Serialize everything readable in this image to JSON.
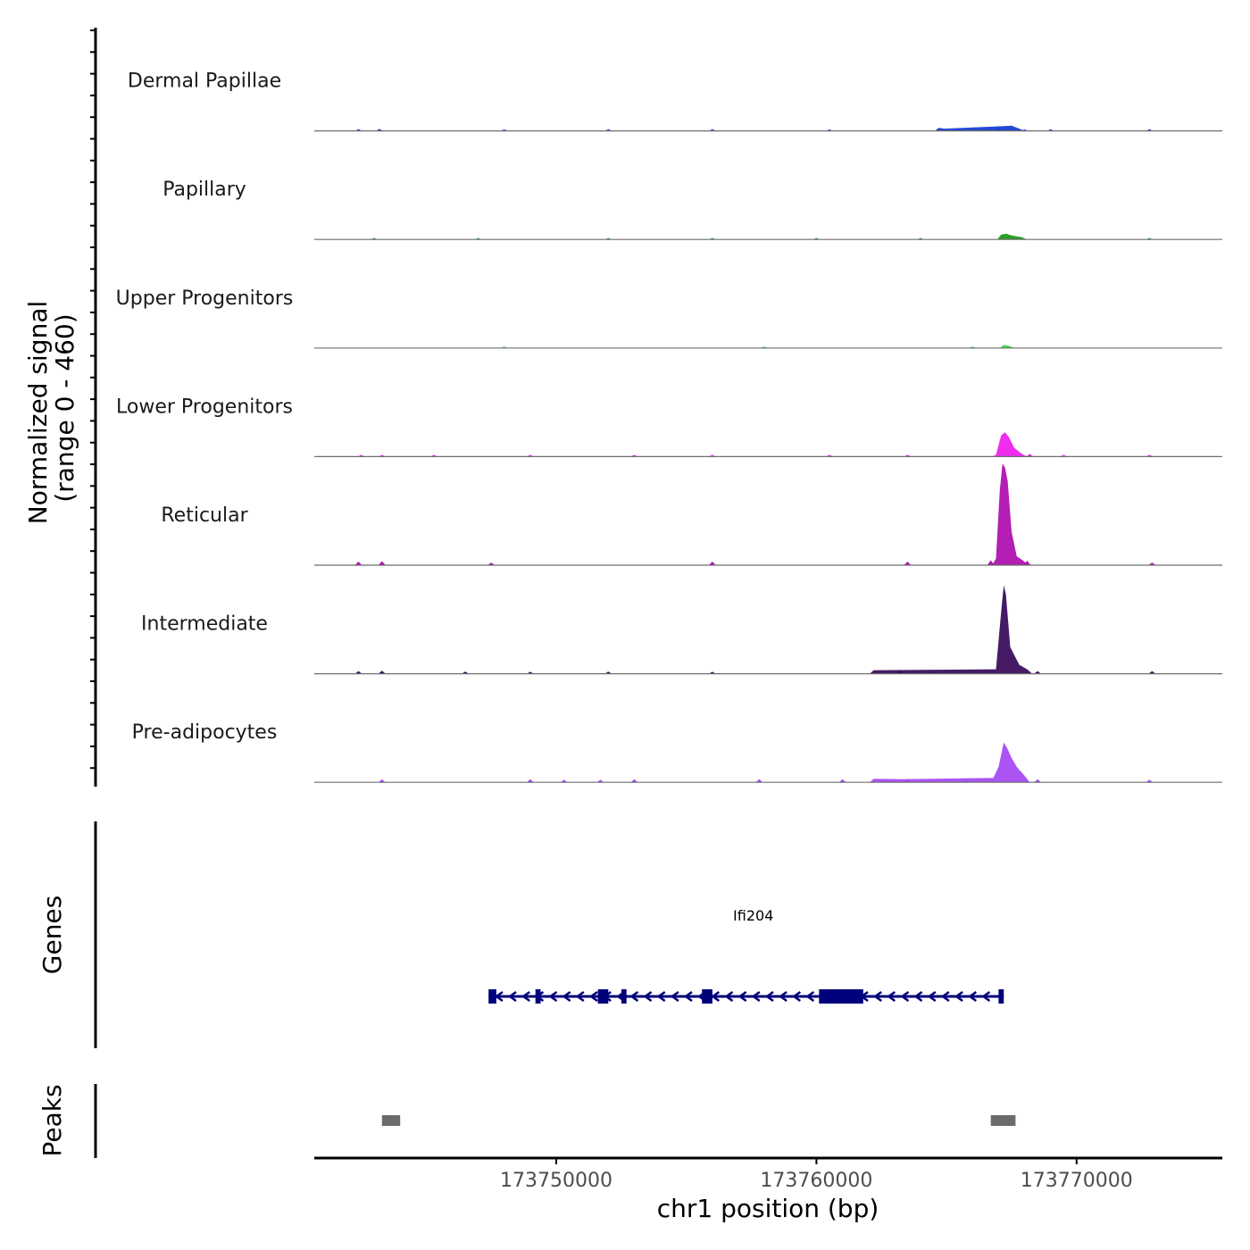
{
  "chart_data": {
    "type": "area",
    "title": "",
    "chromosome": "chr1",
    "xlabel": "chr1 position (bp)",
    "ylabel": "Normalized signal",
    "ylabel_range": "(range 0 - 460)",
    "y_range": [
      0,
      460
    ],
    "xlim": [
      173740700,
      173775600
    ],
    "x_ticks": [
      173750000,
      173760000,
      173770000
    ],
    "x_tick_labels": [
      "173750000",
      "173760000",
      "173770000"
    ],
    "tracks": [
      {
        "name": "Dermal Papillae",
        "color": "#1a3fd1",
        "baseline": [
          [
            173742400,
            2
          ],
          [
            173743200,
            3
          ],
          [
            173748000,
            1
          ],
          [
            173752000,
            2
          ],
          [
            173756000,
            2
          ],
          [
            173760500,
            1
          ],
          [
            173765500,
            3
          ],
          [
            173767000,
            7
          ],
          [
            173768000,
            1
          ],
          [
            173769000,
            2
          ],
          [
            173772800,
            2
          ]
        ],
        "peaks": [
          [
            173764700,
            14
          ],
          [
            173764900,
            10
          ],
          [
            173767300,
            22
          ],
          [
            173767500,
            24
          ],
          [
            173767800,
            10
          ]
        ]
      },
      {
        "name": "Papillary",
        "color": "#1f9a1f",
        "baseline": [
          [
            173743000,
            1
          ],
          [
            173747000,
            1
          ],
          [
            173752000,
            1
          ],
          [
            173756000,
            1
          ],
          [
            173760000,
            1
          ],
          [
            173764000,
            1
          ],
          [
            173772800,
            1
          ]
        ],
        "peaks": [
          [
            173767100,
            22
          ],
          [
            173767300,
            26
          ],
          [
            173767500,
            18
          ],
          [
            173767900,
            10
          ]
        ]
      },
      {
        "name": "Upper Progenitors",
        "color": "#4ed14e",
        "baseline": [
          [
            173748000,
            1
          ],
          [
            173758000,
            1
          ],
          [
            173766000,
            1
          ]
        ],
        "peaks": [
          [
            173767200,
            14
          ],
          [
            173767400,
            10
          ]
        ]
      },
      {
        "name": "Lower Progenitors",
        "color": "#ee22ee",
        "baseline": [
          [
            173742500,
            2
          ],
          [
            173743300,
            2
          ],
          [
            173745300,
            2
          ],
          [
            173749000,
            2
          ],
          [
            173753000,
            2
          ],
          [
            173756000,
            2
          ],
          [
            173760500,
            2
          ],
          [
            173763500,
            2
          ],
          [
            173768200,
            6
          ],
          [
            173769500,
            2
          ],
          [
            173772800,
            2
          ]
        ],
        "peaks": [
          [
            173766900,
            8
          ],
          [
            173767100,
            96
          ],
          [
            173767250,
            110
          ],
          [
            173767400,
            88
          ],
          [
            173767600,
            40
          ],
          [
            173767900,
            12
          ]
        ]
      },
      {
        "name": "Reticular",
        "color": "#b012b0",
        "baseline": [
          [
            173742400,
            10
          ],
          [
            173743300,
            12
          ],
          [
            173747500,
            6
          ],
          [
            173756000,
            10
          ],
          [
            173763500,
            10
          ],
          [
            173766700,
            16
          ],
          [
            173768100,
            14
          ],
          [
            173772900,
            6
          ]
        ],
        "peaks": [
          [
            173766900,
            30
          ],
          [
            173767050,
            340
          ],
          [
            173767150,
            460
          ],
          [
            173767250,
            440
          ],
          [
            173767350,
            380
          ],
          [
            173767500,
            150
          ],
          [
            173767700,
            40
          ],
          [
            173767950,
            20
          ]
        ]
      },
      {
        "name": "Intermediate",
        "color": "#3b0f5e",
        "baseline": [
          [
            173742400,
            6
          ],
          [
            173743300,
            8
          ],
          [
            173746500,
            4
          ],
          [
            173749000,
            3
          ],
          [
            173752000,
            4
          ],
          [
            173756000,
            3
          ],
          [
            173763200,
            10
          ],
          [
            173764500,
            4
          ],
          [
            173768500,
            6
          ],
          [
            173772900,
            6
          ]
        ],
        "peaks": [
          [
            173762200,
            16
          ],
          [
            173766900,
            20
          ],
          [
            173767100,
            280
          ],
          [
            173767200,
            400
          ],
          [
            173767280,
            360
          ],
          [
            173767450,
            120
          ],
          [
            173767800,
            40
          ],
          [
            173768100,
            20
          ]
        ]
      },
      {
        "name": "Pre-adipocytes",
        "color": "#a64bf2",
        "baseline": [
          [
            173743300,
            8
          ],
          [
            173749000,
            8
          ],
          [
            173750300,
            6
          ],
          [
            173751700,
            6
          ],
          [
            173753000,
            8
          ],
          [
            173757800,
            8
          ],
          [
            173761000,
            8
          ],
          [
            173763500,
            10
          ],
          [
            173765800,
            6
          ],
          [
            173768500,
            8
          ],
          [
            173772800,
            6
          ]
        ],
        "peaks": [
          [
            173762200,
            16
          ],
          [
            173763400,
            14
          ],
          [
            173766800,
            20
          ],
          [
            173767000,
            70
          ],
          [
            173767200,
            180
          ],
          [
            173767350,
            150
          ],
          [
            173767500,
            110
          ],
          [
            173767700,
            70
          ],
          [
            173768000,
            30
          ]
        ]
      }
    ],
    "genes": [
      {
        "name": "Ifi204",
        "strand": "-",
        "start": 173747400,
        "end": 173767200,
        "exons": [
          [
            173747400,
            173747700
          ],
          [
            173749200,
            173749400
          ],
          [
            173751600,
            173752000
          ],
          [
            173752500,
            173752700
          ],
          [
            173755600,
            173756000
          ],
          [
            173760100,
            173761800
          ],
          [
            173767000,
            173767200
          ]
        ]
      }
    ],
    "peak_regions": [
      [
        173743300,
        173744000
      ],
      [
        173766700,
        173767650
      ]
    ],
    "panels": [
      "Normalized signal",
      "Genes",
      "Peaks"
    ],
    "genes_axis_label": "Genes",
    "peaks_axis_label": "Peaks"
  }
}
